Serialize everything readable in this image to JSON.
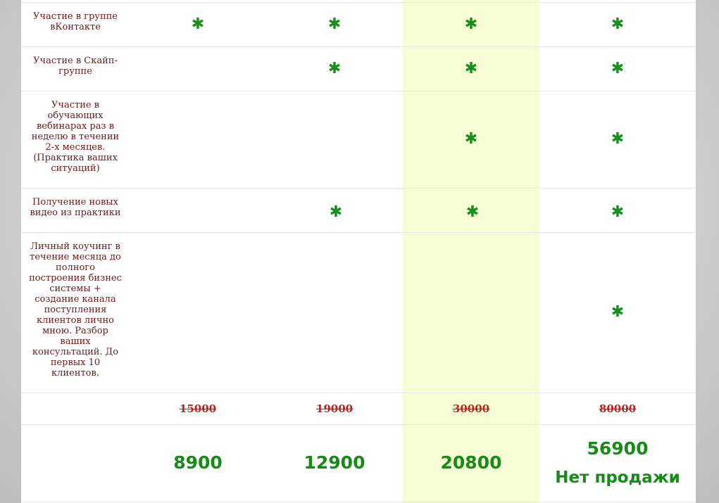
{
  "rows": [
    {
      "label": "Участие в группе вКонтакте",
      "marks": [
        "✱",
        "✱",
        "✱",
        "✱"
      ]
    },
    {
      "label": "Участие в Скайп-группе",
      "marks": [
        "",
        "✱",
        "✱",
        "✱"
      ]
    },
    {
      "label": "Участие в обучающих вебинарах раз в неделю в течении 2-х месяцев. (Практика ваших ситуаций)",
      "marks": [
        "",
        "",
        "✱",
        "✱"
      ]
    },
    {
      "label": "Получение новых видео из практики",
      "marks": [
        "",
        "✱",
        "✱",
        "✱"
      ]
    },
    {
      "label": "Личный коучинг в течение месяца до полного построения бизнес системы + создание канала поступления клиентов лично мною. Разбор ваших консультаций. До первых 10 клиентов.",
      "marks": [
        "",
        "",
        "",
        "✱"
      ]
    }
  ],
  "old_prices": [
    "15000",
    "19000",
    "30000",
    "80000"
  ],
  "new_prices": [
    "8900",
    "12900",
    "20800",
    "56900"
  ],
  "sold_out_note": "Нет продажи",
  "colors": {
    "highlight": "#f6fdd4",
    "label": "#6b1a1a",
    "mark": "#15901a",
    "old_price": "#cc1d1d",
    "new_price": "#178a17"
  }
}
